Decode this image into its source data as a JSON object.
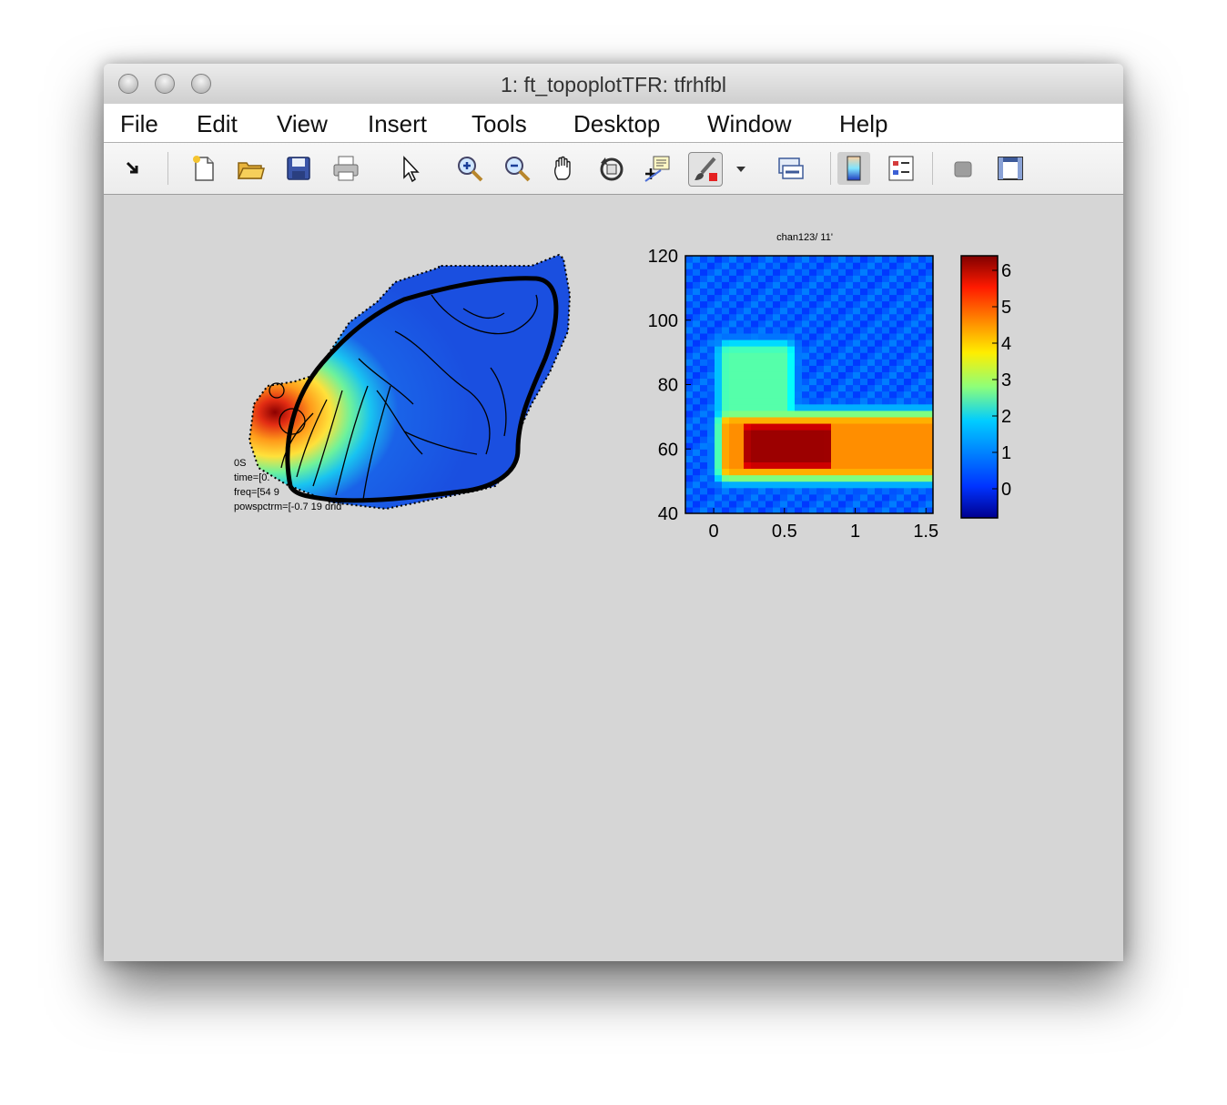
{
  "window": {
    "title": "1: ft_topoplotTFR: tfrhfbl"
  },
  "menu": [
    "File",
    "Edit",
    "View",
    "Insert",
    "Tools",
    "Desktop",
    "Window",
    "Help"
  ],
  "toolbar": {
    "icons": [
      "dock-arrow-icon",
      "new-figure-icon",
      "open-file-icon",
      "save-icon",
      "print-icon",
      "pointer-icon",
      "zoom-in-icon",
      "zoom-out-icon",
      "pan-hand-icon",
      "rotate-3d-icon",
      "data-cursor-icon",
      "brush-icon",
      "brush-dropdown-icon",
      "link-plot-icon",
      "colorbar-icon",
      "legend-icon",
      "hide-plot-tools-icon",
      "show-plot-tools-icon"
    ]
  },
  "topoplot": {
    "annotation_lines": [
      "0S",
      "time=[0.",
      "freq=[54 9",
      "powspctrm=[-0.7 19 drid"
    ]
  },
  "tfr": {
    "title": "chan123/ 11'",
    "yticks": [
      "120",
      "100",
      "80",
      "60",
      "40"
    ],
    "xticks": [
      "0",
      "0.5",
      "1",
      "1.5"
    ],
    "colorbar_ticks": [
      "6",
      "5",
      "4",
      "3",
      "2",
      "1",
      "0"
    ]
  },
  "chart_data": {
    "type": "heatmap",
    "title": "chan123/ 11'",
    "xlabel": "",
    "ylabel": "",
    "xlim": [
      -0.2,
      1.55
    ],
    "ylim": [
      40,
      120
    ],
    "colorbar_range": [
      -0.8,
      6.4
    ],
    "description_bands": [
      {
        "freq": [
          54,
          68
        ],
        "time": [
          0.1,
          1.55
        ],
        "value": 4.5
      },
      {
        "freq": [
          56,
          66
        ],
        "time": [
          0.25,
          0.8
        ],
        "value": 6.2
      },
      {
        "freq": [
          68,
          90
        ],
        "time": [
          0.1,
          0.5
        ],
        "value": 2.5
      }
    ],
    "background_value": 0.5
  },
  "colors": {
    "window_bg": "#d6d6d6",
    "menubar_bg": "#ffffff"
  }
}
